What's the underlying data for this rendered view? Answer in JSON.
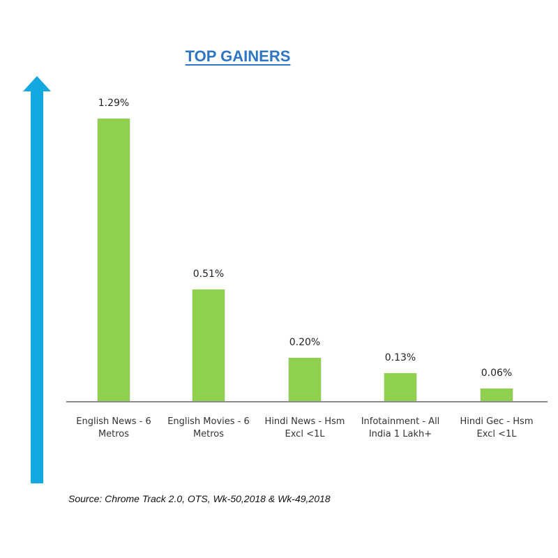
{
  "title": "TOP GAINERS",
  "source": "Source: Chrome Track 2.0, OTS, Wk-50,2018 & Wk-49,2018",
  "colors": {
    "bar": "#8fd14f",
    "arrow": "#13a8e0",
    "title": "#2e75c4",
    "axis": "#8c8c8c"
  },
  "icons": {
    "arrow": "arrow-up-icon"
  },
  "chart_data": {
    "type": "bar",
    "title": "TOP GAINERS",
    "categories": [
      "English News - 6 Metros",
      "English Movies - 6 Metros",
      "Hindi News - Hsm Excl <1L",
      "Infotainment - All India 1 Lakh+",
      "Hindi Gec - Hsm Excl <1L"
    ],
    "values": [
      1.29,
      0.51,
      0.2,
      0.13,
      0.06
    ],
    "labels": [
      "1.29%",
      "0.51%",
      "0.20%",
      "0.13%",
      "0.06%"
    ],
    "xlabel": "",
    "ylabel": "",
    "unit": "%",
    "ylim": [
      0,
      1.29
    ],
    "grid": false,
    "legend": "none",
    "annotations": [
      "Source: Chrome Track 2.0, OTS, Wk-50,2018 & Wk-49,2018"
    ]
  },
  "bars": [
    {
      "label": "1.29%",
      "cat1": "English News - 6",
      "cat2": "Metros"
    },
    {
      "label": "0.51%",
      "cat1": "English Movies - 6",
      "cat2": "Metros"
    },
    {
      "label": "0.20%",
      "cat1": "Hindi News - Hsm",
      "cat2": "Excl <1L"
    },
    {
      "label": "0.13%",
      "cat1": "Infotainment - All",
      "cat2": "India 1 Lakh+"
    },
    {
      "label": "0.06%",
      "cat1": "Hindi Gec - Hsm",
      "cat2": "Excl <1L"
    }
  ]
}
